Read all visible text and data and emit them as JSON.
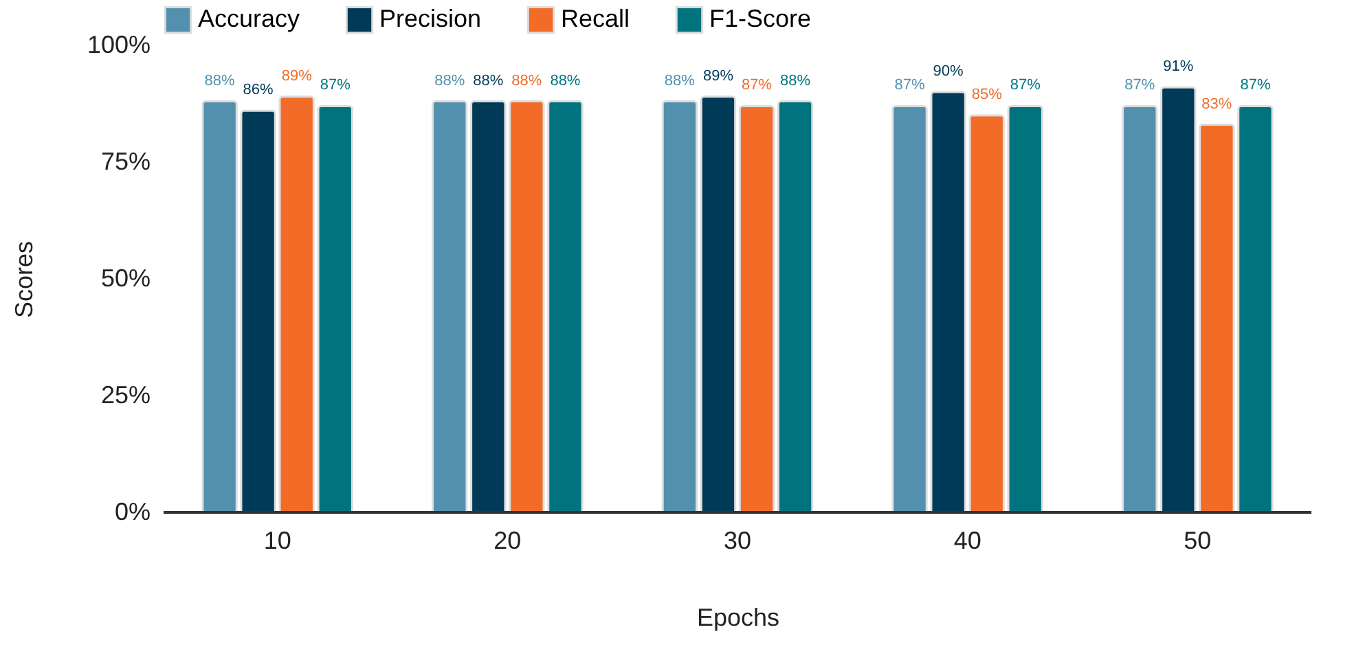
{
  "chart_data": {
    "type": "bar",
    "xlabel": "Epochs",
    "ylabel": "Scores",
    "categories": [
      "10",
      "20",
      "30",
      "40",
      "50"
    ],
    "ylim": [
      0,
      100
    ],
    "yticks": [
      {
        "value": 0,
        "label": "0%"
      },
      {
        "value": 25,
        "label": "25%"
      },
      {
        "value": 50,
        "label": "50%"
      },
      {
        "value": 75,
        "label": "75%"
      },
      {
        "value": 100,
        "label": "100%"
      }
    ],
    "legend": "top",
    "series": [
      {
        "name": "Accuracy",
        "color": "#5390ae",
        "values": [
          88,
          88,
          88,
          87,
          87
        ],
        "value_labels": [
          "88%",
          "88%",
          "88%",
          "87%",
          "87%"
        ]
      },
      {
        "name": "Precision",
        "color": "#003a57",
        "values": [
          86,
          88,
          89,
          90,
          91
        ],
        "value_labels": [
          "86%",
          "88%",
          "89%",
          "90%",
          "91%"
        ]
      },
      {
        "name": "Recall",
        "color": "#f26b27",
        "values": [
          89,
          88,
          87,
          85,
          83
        ],
        "value_labels": [
          "89%",
          "88%",
          "87%",
          "85%",
          "83%"
        ]
      },
      {
        "name": "F1-Score",
        "color": "#00737f",
        "values": [
          87,
          88,
          88,
          87,
          87
        ],
        "value_labels": [
          "87%",
          "88%",
          "88%",
          "87%",
          "87%"
        ]
      }
    ]
  }
}
